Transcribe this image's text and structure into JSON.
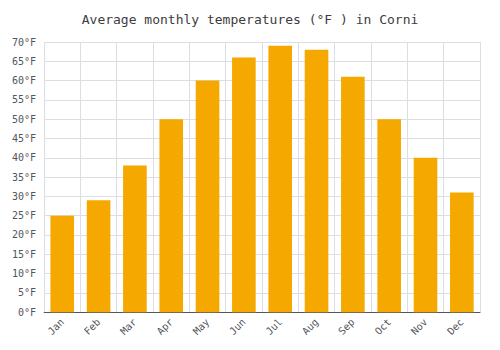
{
  "chart_data": {
    "type": "bar",
    "title": "Average monthly temperatures (°F ) in Corni",
    "categories": [
      "Jan",
      "Feb",
      "Mar",
      "Apr",
      "May",
      "Jun",
      "Jul",
      "Aug",
      "Sep",
      "Oct",
      "Nov",
      "Dec"
    ],
    "values": [
      25,
      29,
      38,
      50,
      60,
      66,
      69,
      68,
      61,
      50,
      40,
      31
    ],
    "color": "#F5A800",
    "ylim": [
      0,
      70
    ],
    "yticks": [
      {
        "value": 0,
        "label": "0°F"
      },
      {
        "value": 5,
        "label": "5°F"
      },
      {
        "value": 10,
        "label": "10°F"
      },
      {
        "value": 15,
        "label": "15°F"
      },
      {
        "value": 20,
        "label": "20°F"
      },
      {
        "value": 25,
        "label": "25°F"
      },
      {
        "value": 30,
        "label": "30°F"
      },
      {
        "value": 35,
        "label": "35°F"
      },
      {
        "value": 40,
        "label": "40°F"
      },
      {
        "value": 45,
        "label": "45°F"
      },
      {
        "value": 50,
        "label": "50°F"
      },
      {
        "value": 55,
        "label": "55°F"
      },
      {
        "value": 60,
        "label": "60°F"
      },
      {
        "value": 65,
        "label": "65°F"
      },
      {
        "value": 70,
        "label": "70°F"
      }
    ],
    "grid": true
  }
}
